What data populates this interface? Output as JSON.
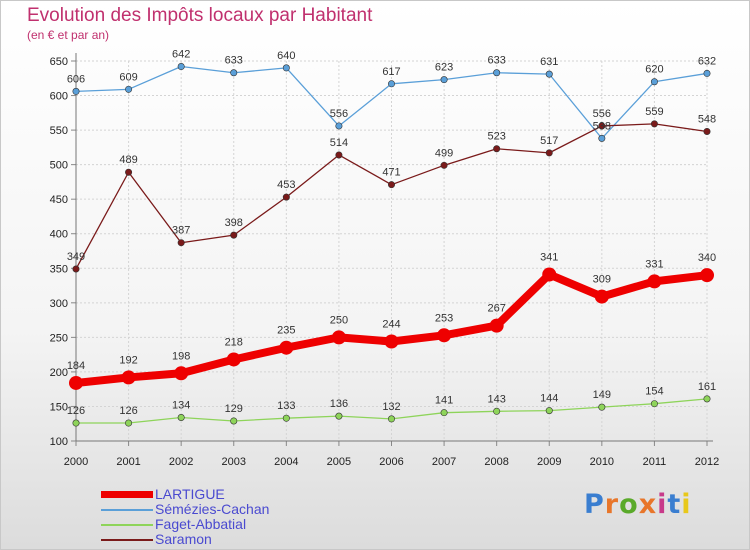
{
  "header": {
    "title": "Evolution des Impôts locaux par Habitant",
    "subtitle": "(en € et par an)"
  },
  "logo": {
    "text": "Proxiti",
    "colors": [
      "#3a7ed0",
      "#e8762a",
      "#5aaa2a",
      "#e8762a",
      "#c83a8a",
      "#3a7ed0",
      "#e8c81a"
    ]
  },
  "chart_data": {
    "type": "line",
    "title": "Evolution des Impôts locaux par Habitant",
    "subtitle": "(en € et par an)",
    "x": [
      "2000",
      "2001",
      "2002",
      "2003",
      "2004",
      "2005",
      "2006",
      "2007",
      "2008",
      "2009",
      "2010",
      "2011",
      "2012"
    ],
    "ylim": [
      100,
      650
    ],
    "yticks": [
      100,
      150,
      200,
      250,
      300,
      350,
      400,
      450,
      500,
      550,
      600,
      650
    ],
    "grid": true,
    "legend": "bottom-left",
    "series": [
      {
        "name": "LARTIGUE",
        "color": "#ee0000",
        "values": [
          184,
          192,
          198,
          218,
          235,
          250,
          244,
          253,
          267,
          341,
          309,
          331,
          340
        ]
      },
      {
        "name": "Sémézies-Cachan",
        "color": "#5a9fd8",
        "values": [
          606,
          609,
          642,
          633,
          640,
          556,
          617,
          623,
          633,
          631,
          538,
          620,
          632
        ]
      },
      {
        "name": "Faget-Abbatial",
        "color": "#8ed45a",
        "values": [
          126,
          126,
          134,
          129,
          133,
          136,
          132,
          141,
          143,
          144,
          149,
          154,
          161
        ]
      },
      {
        "name": "Saramon",
        "color": "#7a1a1a",
        "values": [
          349,
          489,
          387,
          398,
          453,
          514,
          471,
          499,
          523,
          517,
          556,
          559,
          548
        ]
      }
    ]
  }
}
